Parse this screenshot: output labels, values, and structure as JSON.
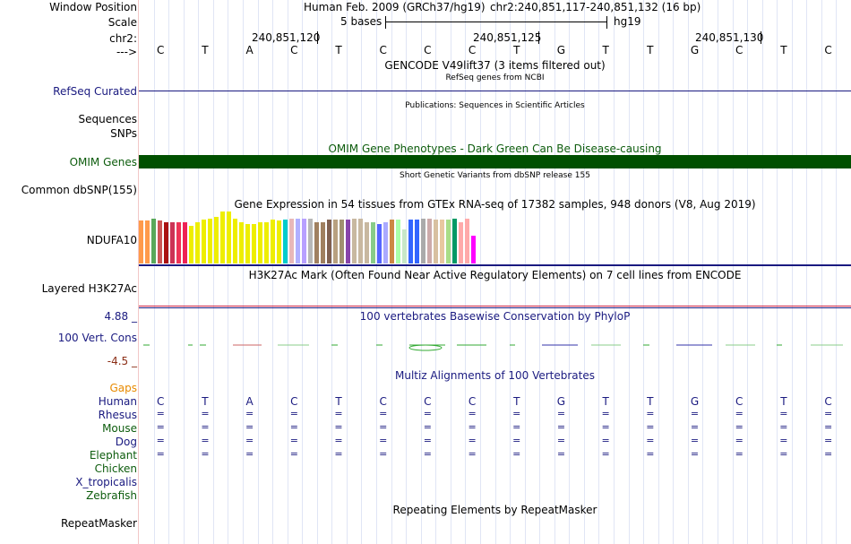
{
  "header": {
    "window_position_label": "Window Position",
    "scale_label": "Scale",
    "chr_label": "chr2:",
    "arrow_label": "--->",
    "assembly_text": "Human Feb. 2009 (GRCh37/hg19)",
    "position_text": "chr2:240,851,117-240,851,132 (16 bp)",
    "scale_text": "5 bases",
    "scale_db": "hg19",
    "coords": [
      "240,851,120",
      "240,851,125",
      "240,851,130"
    ]
  },
  "sequence": [
    "C",
    "T",
    "A",
    "C",
    "T",
    "C",
    "C",
    "C",
    "T",
    "G",
    "T",
    "T",
    "G",
    "C",
    "T",
    "C"
  ],
  "tracks": {
    "gencode": {
      "title": "GENCODE V49lift37 (3 items filtered out)"
    },
    "refseq": {
      "subtitle": "RefSeq genes from NCBI",
      "label": "RefSeq Curated"
    },
    "publications": {
      "title": "Publications: Sequences in Scientific Articles",
      "label": "Sequences"
    },
    "snps": {
      "label": "SNPs"
    },
    "omim": {
      "title": "OMIM Gene Phenotypes - Dark Green Can Be Disease-causing",
      "label": "OMIM Genes",
      "color": "#005000"
    },
    "dbsnp": {
      "title": "Short Genetic Variants from dbSNP release 155",
      "label": "Common dbSNP(155)"
    },
    "gtex": {
      "title": "Gene Expression in 54 tissues from GTEx RNA-seq of 17382 samples, 948 donors (V8, Aug 2019)",
      "label": "NDUFA10",
      "levels": [
        0.82,
        0.82,
        0.86,
        0.82,
        0.8,
        0.8,
        0.8,
        0.8,
        0.72,
        0.8,
        0.84,
        0.86,
        0.9,
        1.0,
        1.0,
        0.86,
        0.8,
        0.76,
        0.76,
        0.8,
        0.8,
        0.84,
        0.82,
        0.84,
        0.86,
        0.86,
        0.86,
        0.86,
        0.8,
        0.8,
        0.84,
        0.84,
        0.84,
        0.84,
        0.86,
        0.86,
        0.8,
        0.8,
        0.76,
        0.8,
        0.84,
        0.84,
        0.66,
        0.84,
        0.84,
        0.86,
        0.86,
        0.84,
        0.84,
        0.84,
        0.86,
        0.8,
        0.86,
        0.54
      ],
      "colors": [
        "#ff9a4a",
        "#ff9a4a",
        "#59a85a",
        "#cc5555",
        "#aa1111",
        "#cc3355",
        "#ee3355",
        "#ee2255",
        "#eeee00",
        "#eeee00",
        "#eeee00",
        "#eeee00",
        "#eeee00",
        "#eeee00",
        "#eeee00",
        "#eeee00",
        "#eeee00",
        "#eeee00",
        "#eeee00",
        "#eeee00",
        "#eeee00",
        "#eeee00",
        "#eeee00",
        "#00cccc",
        "#e8b8b8",
        "#b0b0ff",
        "#b8a0ff",
        "#b7b7b7",
        "#a08060",
        "#a08060",
        "#806050",
        "#b8a080",
        "#a09070",
        "#8844aa",
        "#c8b8a0",
        "#c8b8a0",
        "#c8b8a0",
        "#88cc88",
        "#5566ff",
        "#aaaaff",
        "#cc8844",
        "#aaffaa",
        "#c8e8c8",
        "#3366ff",
        "#3366ff",
        "#aaaaaa",
        "#ccaaaa",
        "#d8c0a0",
        "#e8c8a0",
        "#aadd88",
        "#009966",
        "#ffaaaa",
        "#ffaaaa",
        "#ff00ff"
      ]
    },
    "h3k27ac": {
      "title": "H3K27Ac Mark (Often Found Near Active Regulatory Elements) on 7 cell lines from ENCODE",
      "label": "Layered H3K27Ac"
    },
    "conservation": {
      "title": "100 vertebrates Basewise Conservation by PhyloP",
      "label": "100 Vert. Cons",
      "max": "4.88 _",
      "min": "-4.5 _"
    },
    "multiz": {
      "title": "Multiz Alignments of 100 Vertebrates",
      "gaps_label": "Gaps",
      "species": [
        {
          "name": "Human",
          "row": "CTACTCCCTGTTGCTC"
        },
        {
          "name": "Rhesus",
          "row": "================"
        },
        {
          "name": "Mouse",
          "row": "================"
        },
        {
          "name": "Dog",
          "row": "================"
        },
        {
          "name": "Elephant",
          "row": "================"
        },
        {
          "name": "Chicken",
          "row": ""
        },
        {
          "name": "X_tropicalis",
          "row": ""
        },
        {
          "name": "Zebrafish",
          "row": ""
        }
      ]
    },
    "repeatmasker": {
      "title": "Repeating Elements by RepeatMasker",
      "label": "RepeatMasker"
    }
  },
  "colors": {
    "label_blue": "#1a1a80",
    "label_orange": "#e88a00",
    "label_green": "#0d5c0d",
    "label_red": "#8b2e16",
    "grid_line": "#ccd4ee"
  }
}
